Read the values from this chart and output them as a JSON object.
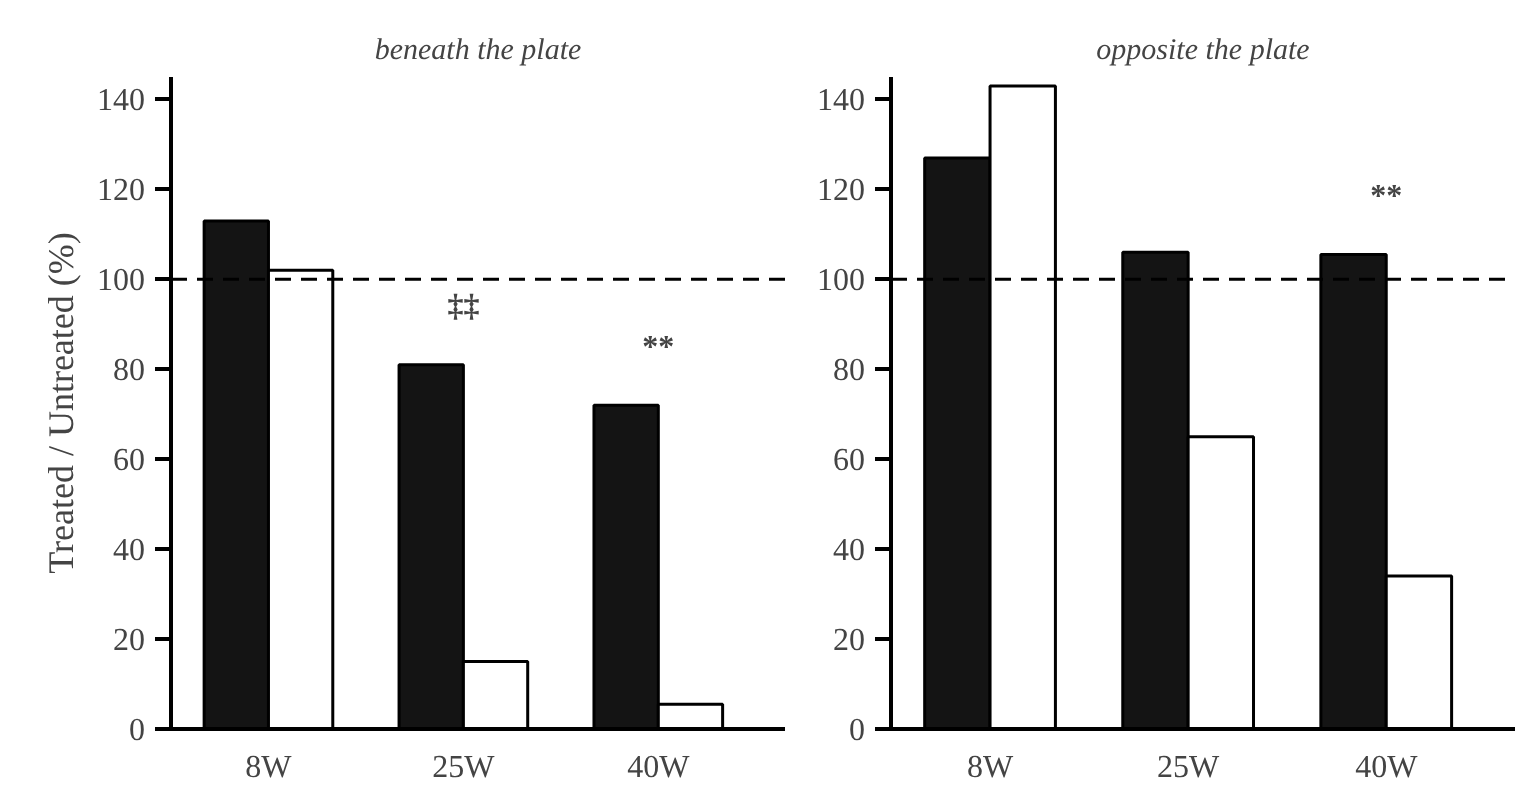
{
  "chart_data": [
    {
      "type": "bar",
      "title": "beneath the plate",
      "ylabel": "Treated / Untreated (%)",
      "categories": [
        "8W",
        "25W",
        "40W"
      ],
      "series": [
        {
          "color": "#141414",
          "values": [
            113,
            81,
            72
          ]
        },
        {
          "color": "#ffffff",
          "values": [
            102,
            15,
            5.5
          ]
        }
      ],
      "ylim": [
        0,
        145
      ],
      "yticks": [
        0,
        20,
        40,
        60,
        80,
        100,
        120,
        140
      ],
      "grid": false,
      "ref_lines": [
        {
          "axis": "y",
          "value": 100,
          "line_style": "dashed",
          "color": "#000000"
        }
      ],
      "annotations": [
        "‡‡",
        "**"
      ]
    },
    {
      "type": "bar",
      "title": "opposite the plate",
      "categories": [
        "8W",
        "25W",
        "40W"
      ],
      "series": [
        {
          "color": "#141414",
          "values": [
            127,
            106,
            105.5
          ]
        },
        {
          "color": "#ffffff",
          "values": [
            143,
            65,
            34
          ]
        }
      ],
      "ylim": [
        0,
        145
      ],
      "yticks": [
        0,
        20,
        40,
        60,
        80,
        100,
        120,
        140
      ],
      "grid": false,
      "ref_lines": [
        {
          "axis": "y",
          "value": 100,
          "line_style": "dashed",
          "color": "#000000"
        }
      ],
      "annotations": [
        "**"
      ]
    }
  ]
}
